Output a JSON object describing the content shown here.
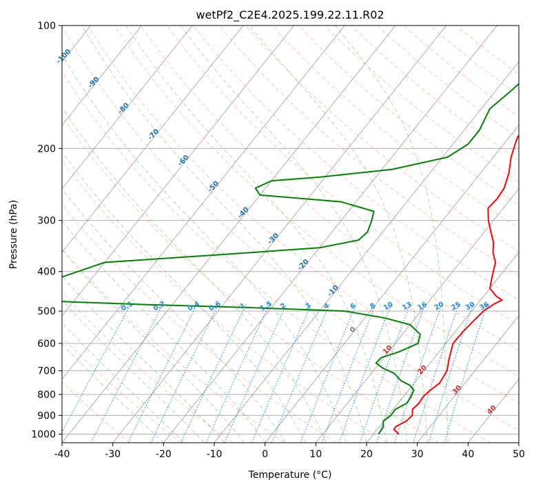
{
  "chart_data": {
    "type": "line",
    "title": "wetPf2_C2E4.2025.199.22.11.R02",
    "xlabel": "Temperature (°C)",
    "ylabel": "Pressure (hPa)",
    "xlim": [
      -40,
      50
    ],
    "ylim": [
      1050,
      100
    ],
    "y_scale": "log",
    "x_ticks": [
      -40,
      -30,
      -20,
      -10,
      0,
      10,
      20,
      30,
      40,
      50
    ],
    "y_ticks": [
      100,
      200,
      300,
      400,
      500,
      600,
      700,
      800,
      900,
      1000
    ],
    "grid": true,
    "skew_t": true,
    "series": [
      {
        "id": "temperature",
        "color": "#ff0000",
        "points": [
          [
            1000,
            25.0
          ],
          [
            975,
            23.3
          ],
          [
            960,
            23.2
          ],
          [
            930,
            24.4
          ],
          [
            900,
            24.7
          ],
          [
            870,
            23.8
          ],
          [
            840,
            24.1
          ],
          [
            810,
            23.9
          ],
          [
            780,
            24.3
          ],
          [
            750,
            25.0
          ],
          [
            700,
            24.5
          ],
          [
            650,
            22.9
          ],
          [
            600,
            21.4
          ],
          [
            560,
            21.5
          ],
          [
            520,
            22.0
          ],
          [
            500,
            22.3
          ],
          [
            480,
            23.3
          ],
          [
            470,
            24.2
          ],
          [
            460,
            22.5
          ],
          [
            440,
            20.0
          ],
          [
            420,
            19.0
          ],
          [
            400,
            18.0
          ],
          [
            380,
            17.0
          ],
          [
            360,
            15.0
          ],
          [
            340,
            13.5
          ],
          [
            320,
            11.3
          ],
          [
            300,
            9.0
          ],
          [
            280,
            7.0
          ],
          [
            265,
            7.3
          ],
          [
            250,
            7.0
          ],
          [
            230,
            5.6
          ],
          [
            210,
            3.5
          ],
          [
            190,
            1.8
          ],
          [
            170,
            0.8
          ],
          [
            155,
            -0.6
          ],
          [
            140,
            -1.7
          ],
          [
            125,
            -2.3
          ],
          [
            115,
            -1.9
          ],
          [
            108,
            0.2
          ],
          [
            100,
            2.9
          ]
        ]
      },
      {
        "id": "dewpoint",
        "color": "#008000",
        "points": [
          [
            1000,
            21.0
          ],
          [
            960,
            20.8
          ],
          [
            930,
            19.9
          ],
          [
            900,
            20.5
          ],
          [
            870,
            20.4
          ],
          [
            840,
            21.7
          ],
          [
            810,
            21.5
          ],
          [
            780,
            21.0
          ],
          [
            760,
            19.5
          ],
          [
            740,
            17.0
          ],
          [
            710,
            14.5
          ],
          [
            690,
            11.5
          ],
          [
            670,
            9.3
          ],
          [
            650,
            9.5
          ],
          [
            630,
            12.0
          ],
          [
            600,
            14.5
          ],
          [
            570,
            13.5
          ],
          [
            540,
            10.0
          ],
          [
            520,
            4.0
          ],
          [
            500,
            -5.0
          ],
          [
            490,
            -25.0
          ],
          [
            482,
            -45.0
          ],
          [
            475,
            -60.0
          ],
          [
            465,
            -75.0
          ],
          [
            380,
            -60.0
          ],
          [
            365,
            -40.0
          ],
          [
            350,
            -20.0
          ],
          [
            335,
            -13.5
          ],
          [
            320,
            -13.0
          ],
          [
            300,
            -14.0
          ],
          [
            285,
            -15.0
          ],
          [
            270,
            -23.0
          ],
          [
            260,
            -40.0
          ],
          [
            250,
            -42.0
          ],
          [
            240,
            -40.0
          ],
          [
            235,
            -31.0
          ],
          [
            225,
            -18.0
          ],
          [
            210,
            -9.0
          ],
          [
            195,
            -7.0
          ],
          [
            180,
            -7.0
          ],
          [
            160,
            -8.3
          ],
          [
            145,
            -7.0
          ],
          [
            130,
            -5.8
          ],
          [
            120,
            -6.0
          ],
          [
            110,
            -4.5
          ],
          [
            100,
            -1.3
          ]
        ]
      }
    ],
    "dry_adiabat_labels": [
      "-100",
      "-90",
      "-80",
      "-70",
      "-60",
      "-50",
      "-40",
      "-30",
      "-20",
      "-10",
      "0",
      "10",
      "20",
      "30",
      "40"
    ],
    "mixing_ratio_labels": [
      "0.1",
      "0.2",
      "0.4",
      "0.6",
      "1",
      "1.5",
      "2",
      "3",
      "4",
      "6",
      "8",
      "10",
      "13",
      "16",
      "20",
      "25",
      "30",
      "36"
    ],
    "colors": {
      "dry_adiabat": "#ff7f50",
      "moist_adiabat": "#4caf50",
      "mixing_ratio": "#1e88e5",
      "isotherm": "#555555",
      "axis": "#000000"
    }
  }
}
